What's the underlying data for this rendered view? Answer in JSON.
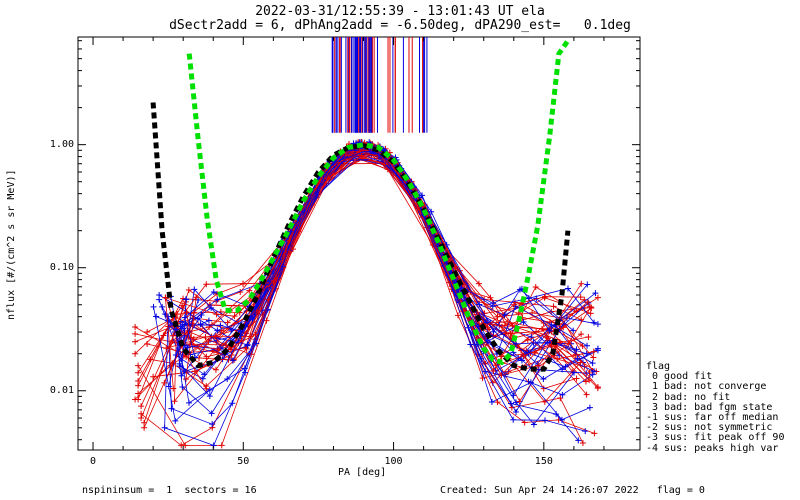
{
  "header": {
    "title": "2022-03-31/12:55:39 - 13:01:43 UT ela",
    "subtitle": "dSectr2add = 6, dPhAng2add = -6.50deg, dPA290_est=   0.1deg"
  },
  "footer": {
    "left": "nspininsum =  1  sectors = 16",
    "right": "Created: Sun Apr 24 14:26:07 2022   flag = 0"
  },
  "legend": {
    "title": "flag",
    "items": [
      " 0 good fit",
      " 1 bad: not converge",
      " 2 bad: no fit",
      " 3 bad: bad fgm state",
      "-1 sus: far off median",
      "-2 sus: not symmetric",
      "-3 sus: fit peak off 90",
      "-4 sus: peaks high var"
    ]
  },
  "colors": {
    "red": "#e00000",
    "blue": "#0000e0",
    "green": "#00e000",
    "black": "#000000"
  },
  "chart_data": {
    "type": "line",
    "xlabel": "PA [deg]",
    "ylabel": "nflux [#/(cm^2 s sr MeV)]",
    "xlim": [
      -5,
      182
    ],
    "ylim": [
      0.0033,
      7.5
    ],
    "yscale": "log",
    "xticks": [
      0,
      50,
      100,
      150
    ],
    "yticks": [
      0.01,
      0.1,
      1.0
    ],
    "ytick_labels": [
      "0.01",
      "0.10",
      "1.00"
    ],
    "series": [
      {
        "name": "black-fit",
        "x": [
          20,
          23,
          26,
          30,
          35,
          40,
          45,
          50,
          55,
          60,
          65,
          70,
          75,
          80,
          85,
          90,
          95,
          100,
          105,
          110,
          115,
          120,
          125,
          130,
          135,
          140,
          145,
          150,
          153,
          156,
          158
        ],
        "y": [
          2.2,
          0.2,
          0.045,
          0.022,
          0.016,
          0.017,
          0.022,
          0.035,
          0.062,
          0.12,
          0.22,
          0.38,
          0.6,
          0.82,
          0.95,
          0.98,
          0.9,
          0.72,
          0.48,
          0.3,
          0.17,
          0.095,
          0.055,
          0.032,
          0.021,
          0.016,
          0.015,
          0.015,
          0.02,
          0.06,
          0.2
        ]
      },
      {
        "name": "green-fit",
        "x": [
          32,
          35,
          38,
          41,
          44,
          48,
          52,
          56,
          60,
          65,
          70,
          75,
          80,
          85,
          90,
          95,
          100,
          105,
          110,
          115,
          120,
          125,
          130,
          133,
          136,
          139,
          142,
          145,
          148,
          152,
          155,
          158
        ],
        "y": [
          5.5,
          1.1,
          0.25,
          0.08,
          0.045,
          0.045,
          0.055,
          0.08,
          0.12,
          0.2,
          0.35,
          0.55,
          0.78,
          0.95,
          1.0,
          0.95,
          0.75,
          0.5,
          0.3,
          0.16,
          0.08,
          0.04,
          0.022,
          0.018,
          0.017,
          0.02,
          0.04,
          0.09,
          0.22,
          1.2,
          5.5,
          7.0
        ]
      }
    ],
    "measurements": {
      "red_first_x": [
        14,
        14,
        14,
        14,
        14,
        15,
        15,
        15,
        15,
        15,
        15,
        16,
        16,
        16,
        17,
        17,
        18,
        18,
        19,
        20
      ],
      "red_first_y": [
        0.0085,
        0.033,
        0.029,
        0.025,
        0.02,
        0.016,
        0.014,
        0.012,
        0.011,
        0.0095,
        0.0085,
        0.0075,
        0.0065,
        0.006,
        0.0055,
        0.005,
        0.03,
        0.024,
        0.018,
        0.013
      ],
      "blue_first_x": [
        22,
        22,
        23,
        24,
        25,
        25,
        26,
        28,
        30,
        32
      ],
      "blue_first_y": [
        0.06,
        0.055,
        0.048,
        0.042,
        0.04,
        0.037,
        0.034,
        0.03,
        0.032,
        0.035
      ],
      "vertical_marker_pa_min": 79,
      "vertical_marker_pa_max": 113
    }
  }
}
